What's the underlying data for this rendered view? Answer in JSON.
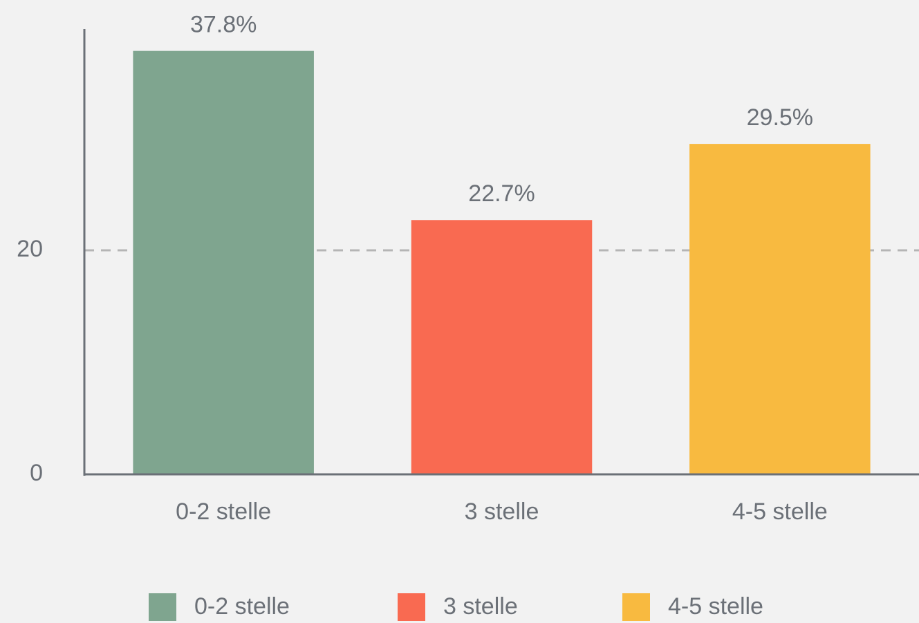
{
  "chart_data": {
    "type": "bar",
    "categories": [
      "0-2 stelle",
      "3 stelle",
      "4-5 stelle"
    ],
    "values": [
      37.8,
      22.7,
      29.5
    ],
    "value_labels": [
      "37.8%",
      "22.7%",
      "29.5%"
    ],
    "colors": [
      "#7fa58f",
      "#f96a51",
      "#f8ba40"
    ],
    "ylim": [
      0,
      40
    ],
    "yticks": [
      0,
      20
    ],
    "grid": true,
    "legend": "bottom"
  }
}
